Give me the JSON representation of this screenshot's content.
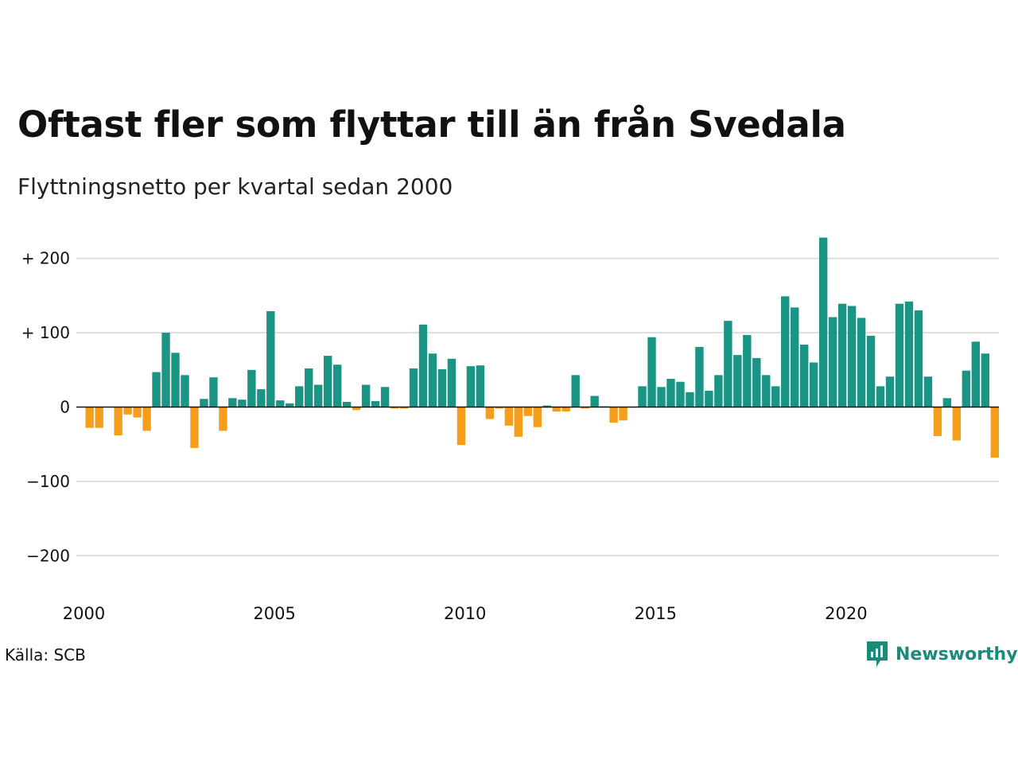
{
  "title": "Oftast fler som flyttar till än från Svedala",
  "subtitle": "Flyttningsnetto per kvartal sedan 2000",
  "source": "Källa: SCB",
  "brand": "Newsworthy",
  "colors": {
    "positive": "#1a9485",
    "negative": "#f49e1c",
    "grid": "#dddddd",
    "zero": "#111111",
    "brand": "#1a8a7a"
  },
  "chart_data": {
    "type": "bar",
    "ylim": [
      -200,
      230
    ],
    "yticks": [
      200,
      100,
      0,
      -100,
      -200
    ],
    "ytick_labels": [
      "+ 200",
      "+ 100",
      "0",
      "−100",
      "−200"
    ],
    "xtick_labels": [
      "2000",
      "2005",
      "2010",
      "2015",
      "2020"
    ],
    "grid": true,
    "values": [
      -28,
      -28,
      0,
      -38,
      -10,
      -14,
      -32,
      47,
      100,
      73,
      43,
      -55,
      11,
      40,
      -32,
      12,
      10,
      50,
      24,
      129,
      9,
      5,
      28,
      52,
      30,
      69,
      57,
      7,
      -4,
      30,
      8,
      27,
      -2,
      -2,
      52,
      111,
      72,
      51,
      65,
      -51,
      55,
      56,
      -16,
      -2,
      -25,
      -40,
      -12,
      -27,
      2,
      -6,
      -6,
      43,
      -2,
      15,
      1,
      -21,
      -18,
      0,
      28,
      94,
      27,
      38,
      34,
      20,
      81,
      22,
      43,
      116,
      70,
      97,
      66,
      43,
      28,
      149,
      134,
      84,
      60,
      228,
      121,
      139,
      136,
      120,
      96,
      28,
      41,
      139,
      142,
      130,
      41,
      -39,
      12,
      -45,
      49,
      88,
      72,
      -68
    ]
  }
}
